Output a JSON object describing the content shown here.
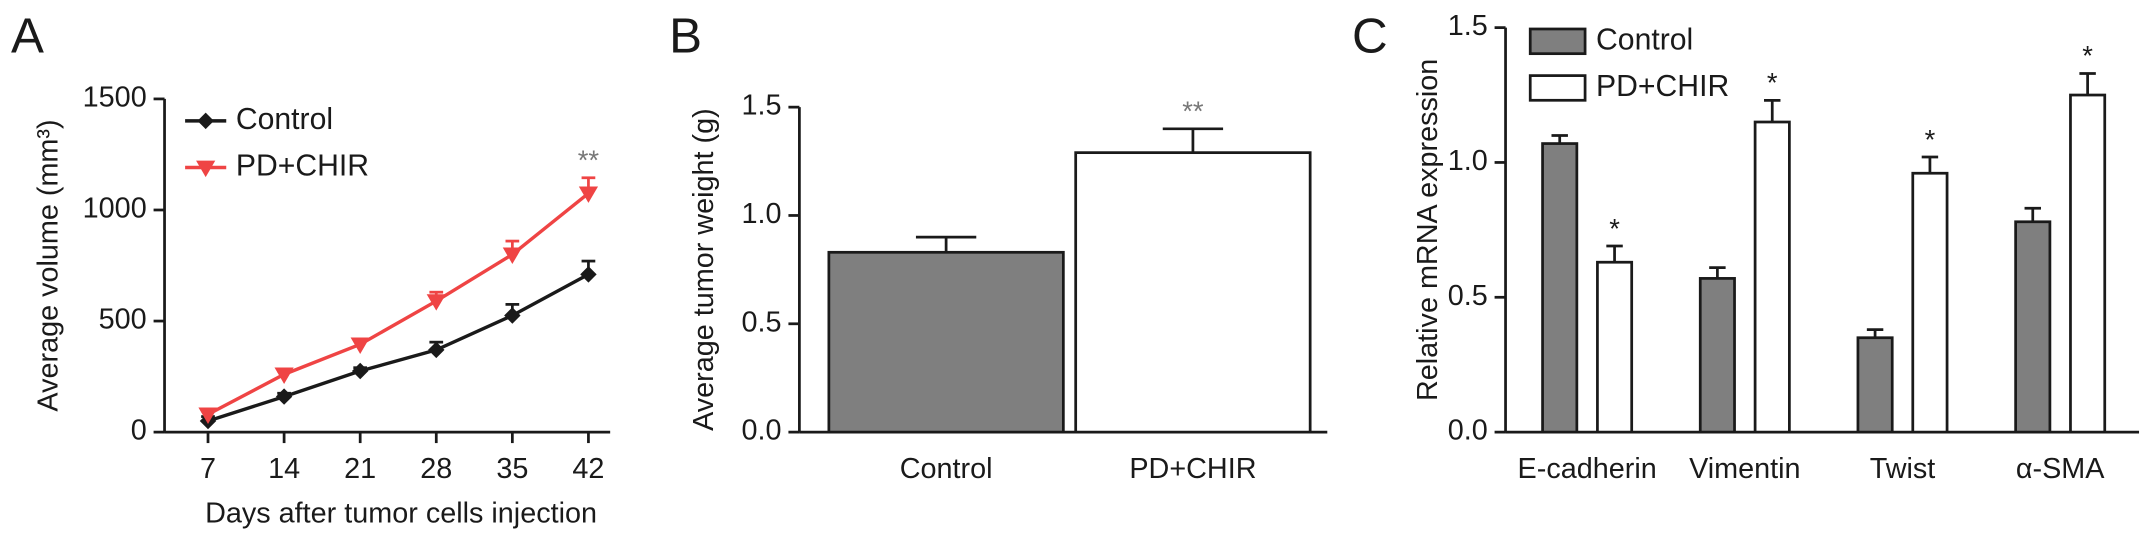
{
  "chart_data": [
    {
      "type": "line",
      "panel": "A",
      "ylabel": "Average volume (mm³)",
      "xlabel": "Days after tumor cells injection",
      "x": [
        7,
        14,
        21,
        28,
        35,
        42
      ],
      "xlim": [
        3,
        44
      ],
      "xticks": [
        7,
        14,
        21,
        28,
        35,
        42
      ],
      "ylim": [
        0,
        1500
      ],
      "yticks": [
        0,
        500,
        1000,
        1500
      ],
      "series": [
        {
          "name": "Control",
          "color": "#1a1a1a",
          "marker": "diamond",
          "values": [
            50,
            160,
            275,
            370,
            525,
            710
          ],
          "errors": [
            20,
            15,
            15,
            35,
            50,
            60
          ]
        },
        {
          "name": "PD+CHIR",
          "color": "#ef4444",
          "marker": "triangle-down",
          "values": [
            80,
            260,
            395,
            590,
            800,
            1075
          ],
          "errors": [
            15,
            15,
            20,
            40,
            60,
            70
          ],
          "significance": [
            null,
            null,
            null,
            null,
            null,
            "**"
          ]
        }
      ]
    },
    {
      "type": "bar",
      "panel": "B",
      "ylabel": "Average tumor weight (g)",
      "categories": [
        "Control",
        "PD+CHIR"
      ],
      "values": [
        0.83,
        1.29
      ],
      "errors": [
        0.07,
        0.11
      ],
      "colors": [
        "#7f7f7f",
        "#ffffff"
      ],
      "significance": [
        null,
        "**"
      ],
      "ylim": [
        0,
        1.5
      ],
      "yticks": [
        {
          "value": 0,
          "label": "0.0"
        },
        0.5,
        {
          "value": 1,
          "label": "1.0"
        },
        1.5
      ]
    },
    {
      "type": "bar",
      "panel": "C",
      "ylabel": "Relative mRNA expression",
      "categories": [
        "E-cadherin",
        "Vimentin",
        "Twist",
        "α-SMA"
      ],
      "ylim": [
        0,
        1.5
      ],
      "yticks": [
        {
          "value": 0,
          "label": "0.0"
        },
        0.5,
        {
          "value": 1,
          "label": "1.0"
        },
        1.5
      ],
      "series": [
        {
          "name": "Control",
          "color": "#7f7f7f",
          "values": [
            1.07,
            0.57,
            0.35,
            0.78
          ],
          "errors": [
            0.03,
            0.04,
            0.03,
            0.05
          ]
        },
        {
          "name": "PD+CHIR",
          "color": "#ffffff",
          "values": [
            0.63,
            1.15,
            0.96,
            1.25
          ],
          "errors": [
            0.06,
            0.08,
            0.06,
            0.08
          ],
          "significance": [
            "*",
            "*",
            "*",
            "*"
          ]
        }
      ]
    }
  ]
}
